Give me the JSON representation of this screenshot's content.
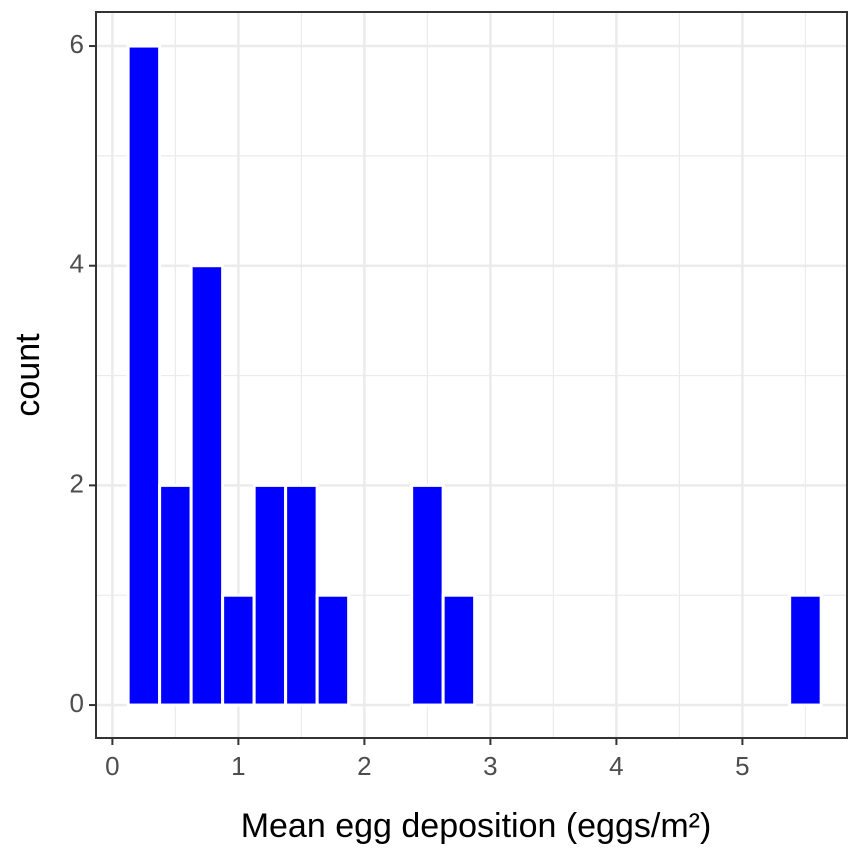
{
  "chart_data": {
    "type": "histogram",
    "x_label": "Mean egg deposition (eggs/m²)",
    "y_label": "count",
    "bins": [
      0.125,
      0.375,
      0.625,
      0.875,
      1.125,
      1.375,
      1.625,
      1.875,
      2.125,
      2.375,
      2.625,
      2.875,
      3.125,
      3.375,
      3.625,
      3.875,
      4.125,
      4.375,
      4.625,
      4.875,
      5.125,
      5.375,
      5.625
    ],
    "counts": [
      6,
      2,
      4,
      1,
      2,
      2,
      1,
      0,
      0,
      2,
      1,
      0,
      0,
      0,
      0,
      0,
      0,
      0,
      0,
      0,
      0,
      1
    ],
    "color": "#0000ff",
    "xlim": [
      -0.13,
      5.83
    ],
    "xticks": [
      0,
      1,
      2,
      3,
      4,
      5
    ],
    "ylim": [
      -0.3,
      6.31
    ],
    "yticks": [
      0,
      2,
      4,
      6
    ],
    "grid": true
  }
}
